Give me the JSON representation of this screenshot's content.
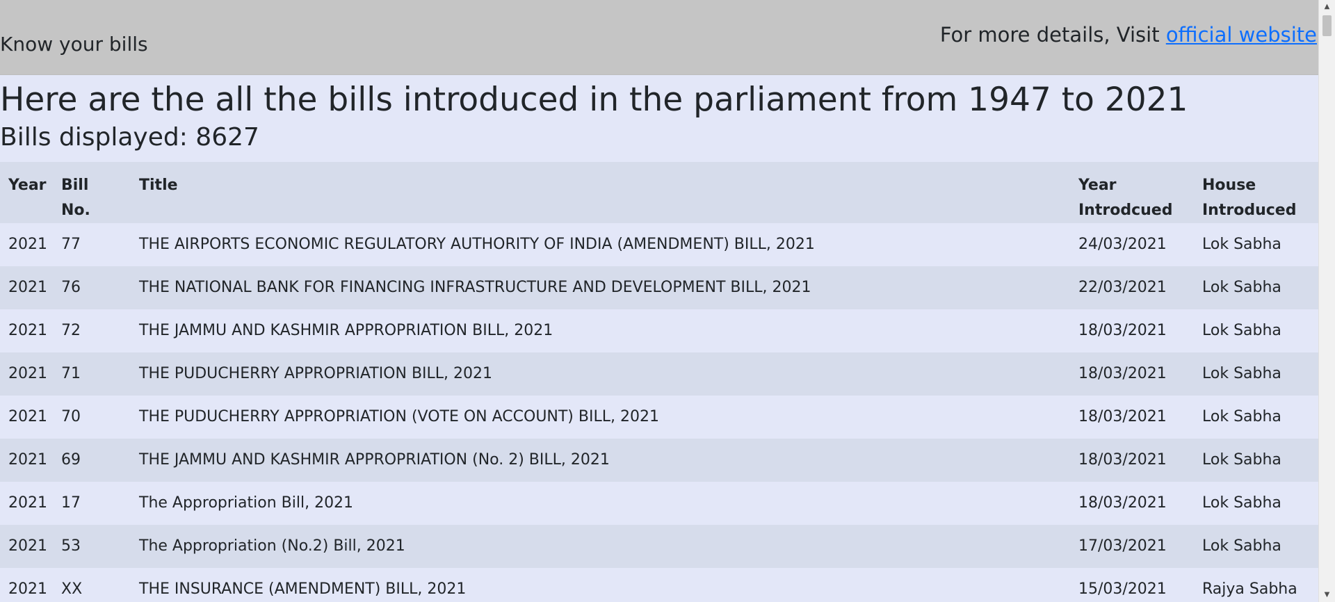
{
  "header": {
    "brand": "Know your bills",
    "more_prefix": "For more details, Visit ",
    "link_label": "official website"
  },
  "main": {
    "heading": "Here are the all the bills introduced in the parliament from 1947 to 2021",
    "count_label": "Bills displayed: 8627"
  },
  "table": {
    "columns": {
      "year": "Year",
      "bill_no": "Bill No.",
      "title": "Title",
      "year_introduced_line1": "Year",
      "year_introduced_line2": "Introdcued",
      "house_line1": "House",
      "house_line2": "Introduced"
    },
    "rows": [
      {
        "year": "2021",
        "bill_no": "77",
        "title": "THE AIRPORTS ECONOMIC REGULATORY AUTHORITY OF INDIA (AMENDMENT) BILL, 2021",
        "date": "24/03/2021",
        "house": "Lok Sabha"
      },
      {
        "year": "2021",
        "bill_no": "76",
        "title": "THE NATIONAL BANK FOR FINANCING INFRASTRUCTURE AND DEVELOPMENT BILL, 2021",
        "date": "22/03/2021",
        "house": "Lok Sabha"
      },
      {
        "year": "2021",
        "bill_no": "72",
        "title": "THE JAMMU AND KASHMIR APPROPRIATION BILL, 2021",
        "date": "18/03/2021",
        "house": "Lok Sabha"
      },
      {
        "year": "2021",
        "bill_no": "71",
        "title": "THE PUDUCHERRY APPROPRIATION BILL, 2021",
        "date": "18/03/2021",
        "house": "Lok Sabha"
      },
      {
        "year": "2021",
        "bill_no": "70",
        "title": "THE PUDUCHERRY APPROPRIATION (VOTE ON ACCOUNT) BILL, 2021",
        "date": "18/03/2021",
        "house": "Lok Sabha"
      },
      {
        "year": "2021",
        "bill_no": "69",
        "title": "THE JAMMU AND KASHMIR APPROPRIATION (No. 2) BILL, 2021",
        "date": "18/03/2021",
        "house": "Lok Sabha"
      },
      {
        "year": "2021",
        "bill_no": "17",
        "title": "The Appropriation Bill, 2021",
        "date": "18/03/2021",
        "house": "Lok Sabha"
      },
      {
        "year": "2021",
        "bill_no": "53",
        "title": "The Appropriation (No.2) Bill, 2021",
        "date": "17/03/2021",
        "house": "Lok Sabha"
      },
      {
        "year": "2021",
        "bill_no": "XX",
        "title": "THE INSURANCE (AMENDMENT) BILL, 2021",
        "date": "15/03/2021",
        "house": "Rajya Sabha"
      }
    ]
  },
  "scrollbar": {
    "up_icon": "chevron-up-icon",
    "down_icon": "chevron-down-icon"
  }
}
